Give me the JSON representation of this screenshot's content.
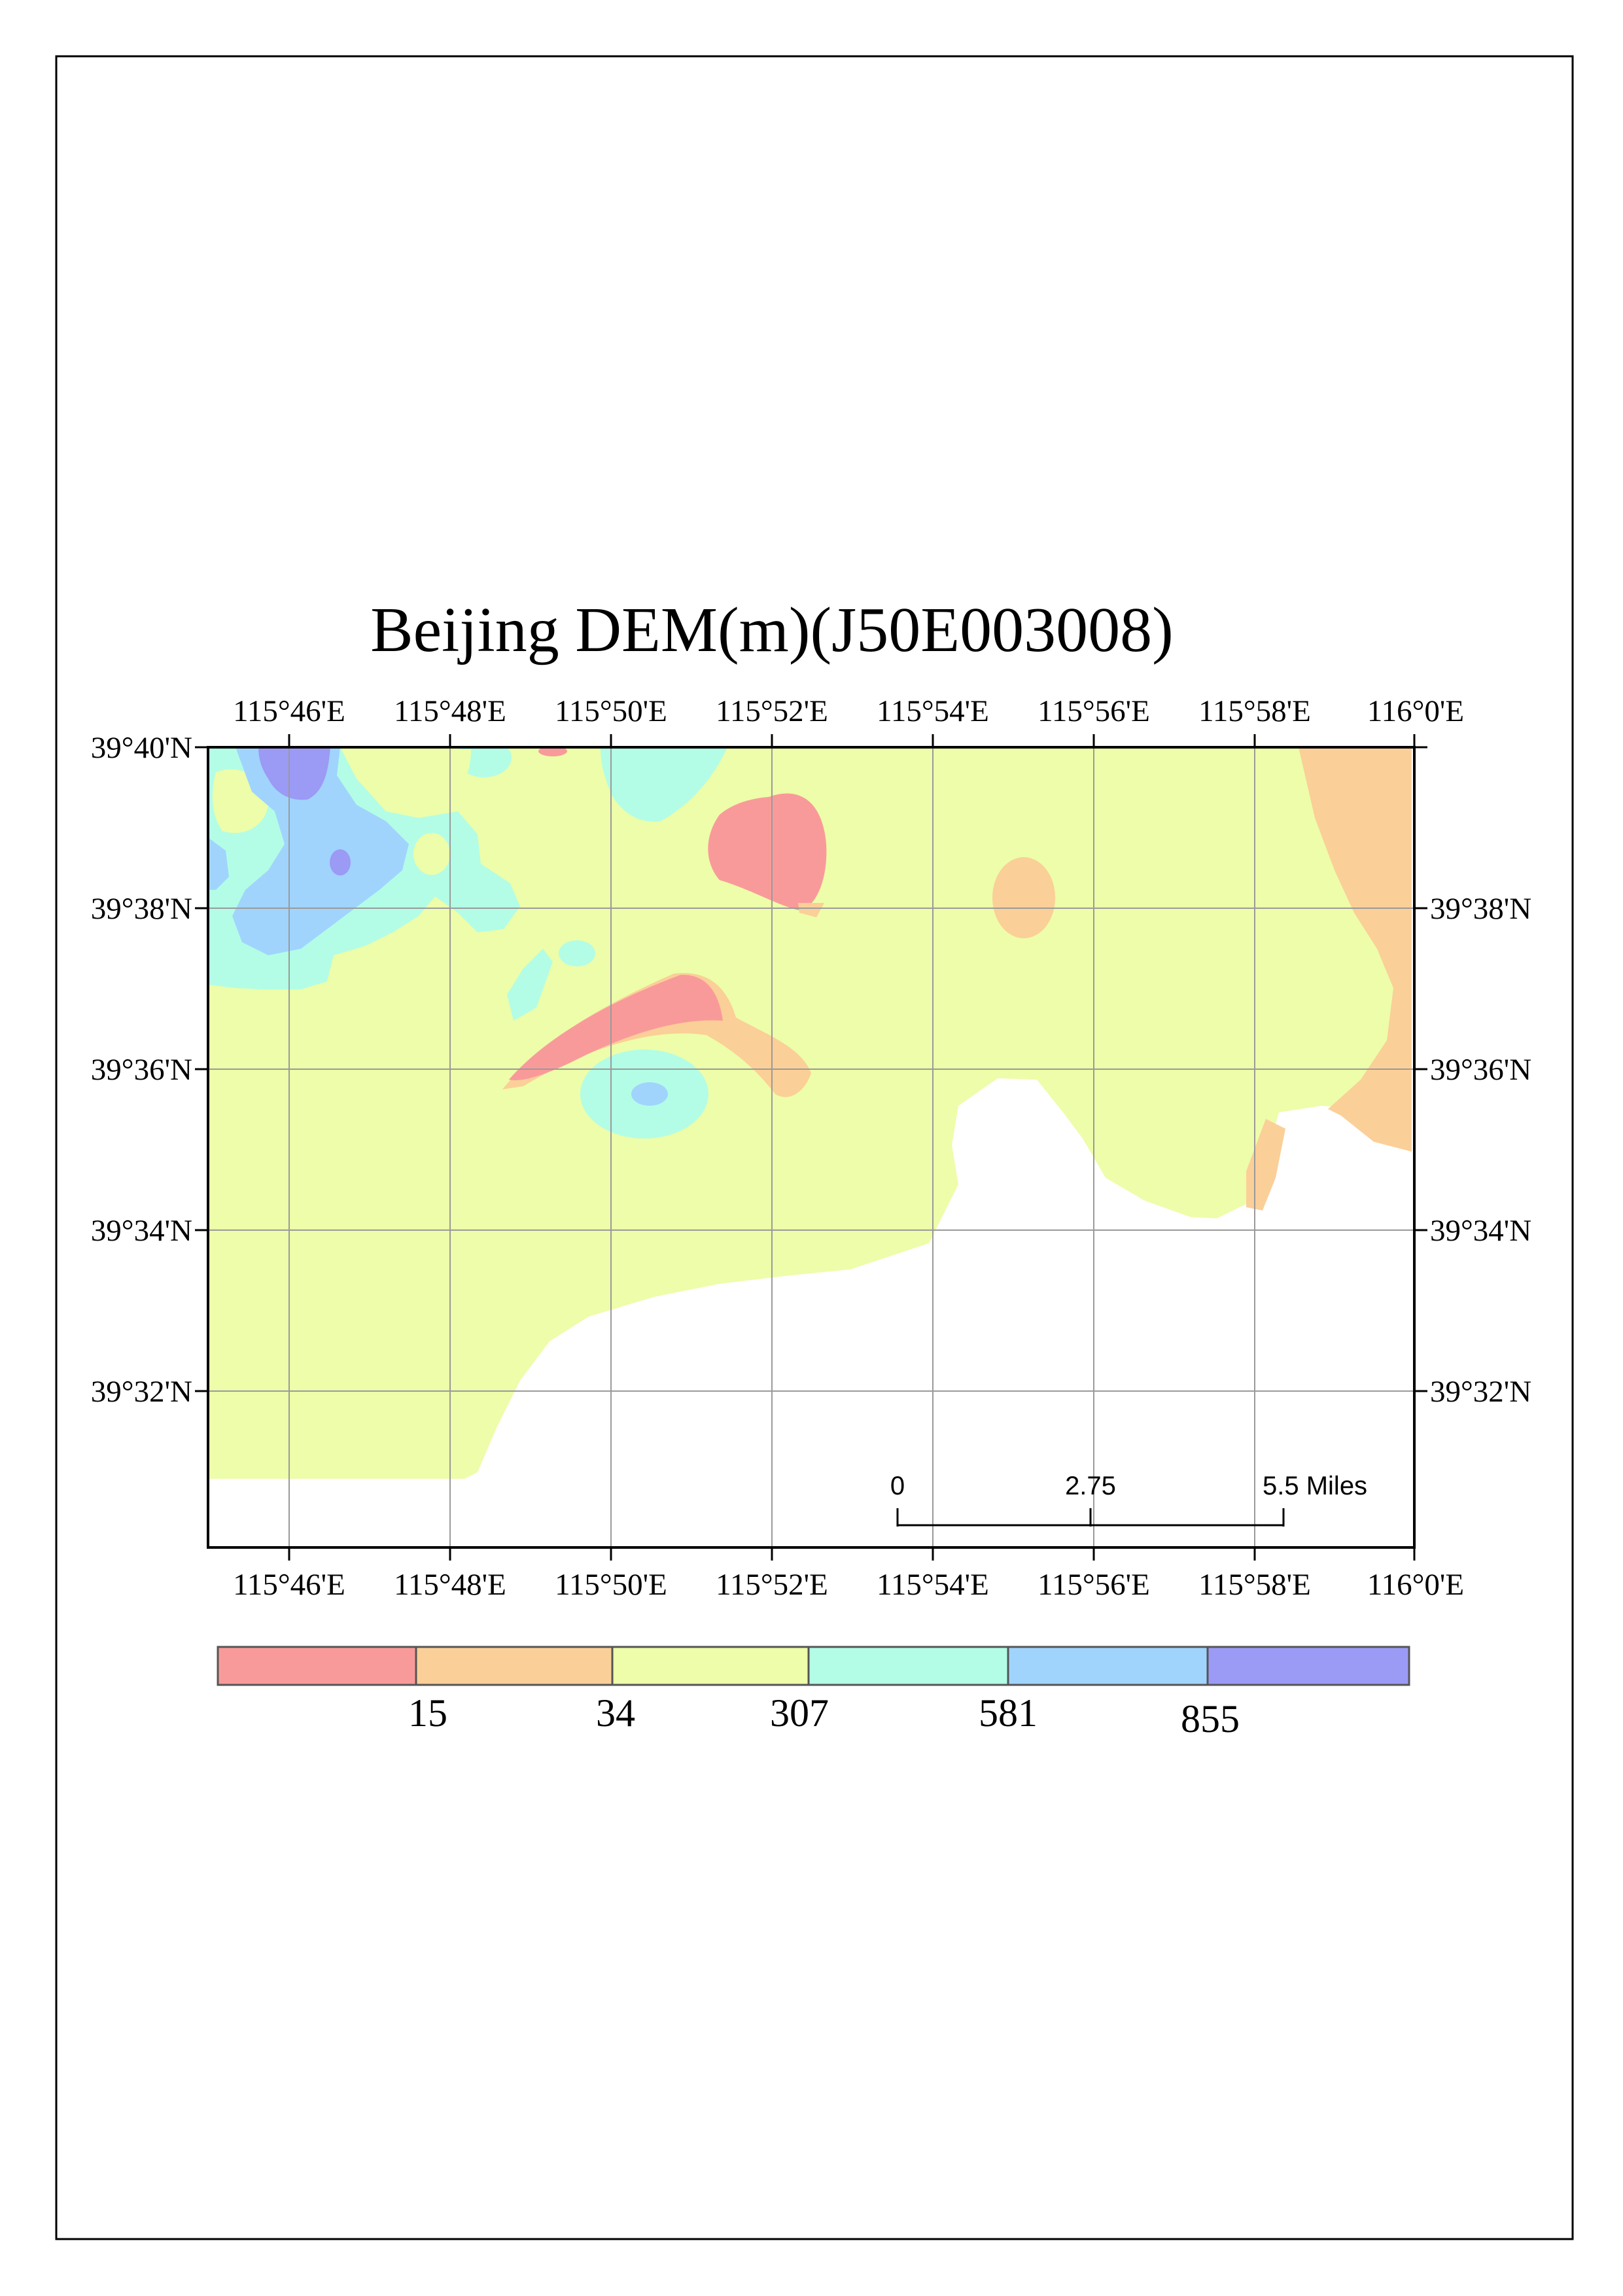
{
  "map": {
    "title": "Beijing DEM(m)(J50E003008)",
    "lon_labels": [
      "115°46'E",
      "115°48'E",
      "115°50'E",
      "115°52'E",
      "115°54'E",
      "115°56'E",
      "115°58'E",
      "116°0'E"
    ],
    "lat_labels": [
      "39°40'N",
      "39°38'N",
      "39°36'N",
      "39°34'N",
      "39°32'N"
    ],
    "lat_labels_right": [
      "39°38'N",
      "39°36'N",
      "39°34'N",
      "39°32'N"
    ],
    "grid": true
  },
  "scale_bar": {
    "labels": [
      "0",
      "2.75",
      "5.5 Miles"
    ]
  },
  "legend": {
    "swatch_colors": [
      "#f99a9a",
      "#fbcf98",
      "#edfda9",
      "#b3fde6",
      "#a0d4fd",
      "#9b9af5"
    ],
    "break_labels": [
      "15",
      "34",
      "307",
      "581",
      "855"
    ]
  },
  "elevation_classes": [
    {
      "color": "#f99a9a"
    },
    {
      "color": "#fbcf98"
    },
    {
      "color": "#edfda9"
    },
    {
      "color": "#b3fde6"
    },
    {
      "color": "#a0d4fd"
    },
    {
      "color": "#9b9af5"
    }
  ]
}
